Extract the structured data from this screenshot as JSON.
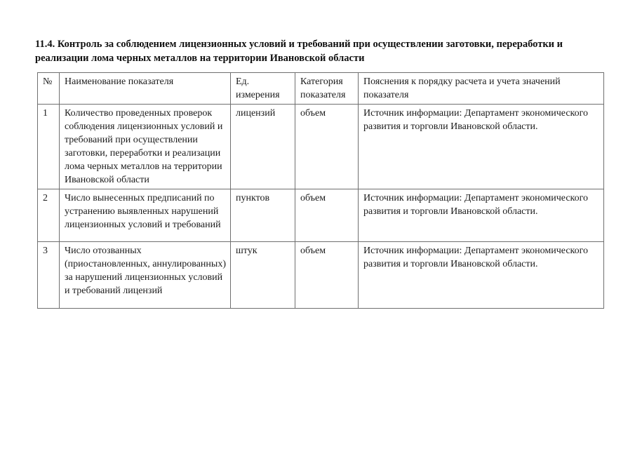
{
  "page": {
    "heading": "11.4. Контроль за соблюдением лицензионных условий и требований при осуществлении заготовки, переработки и реализации лома черных металлов на территории Ивановской области"
  },
  "table": {
    "columns": {
      "num": "№",
      "name": "Наименование показателя",
      "unit": "Ед. измерения",
      "category": "Категория показателя",
      "explanation": "Пояснения к порядку расчета и учета значений показателя"
    },
    "rows": [
      {
        "num": "1",
        "name": "Количество проведенных проверок соблюдения лицензионных условий и требований при осуществлении заготовки, переработки и реализации лома черных металлов на территории Ивановской области",
        "unit": "лицензий",
        "category": "объем",
        "explanation": "Источник информации: Департамент экономического развития и торговли Ивановской области."
      },
      {
        "num": "2",
        "name": "Число вынесенных предписаний по устранению выявленных нарушений лицензионных условий и требований",
        "unit": "пунктов",
        "category": "объем",
        "explanation": "Источник информации: Департамент экономического развития и торговли Ивановской области."
      },
      {
        "num": "3",
        "name": "Число отозванных (приостановленных, аннулированных) за нарушений лицензионных условий и требований лицензий",
        "unit": "штук",
        "category": "объем",
        "explanation": "Источник информации: Департамент экономического развития и торговли Ивановской области."
      }
    ]
  }
}
